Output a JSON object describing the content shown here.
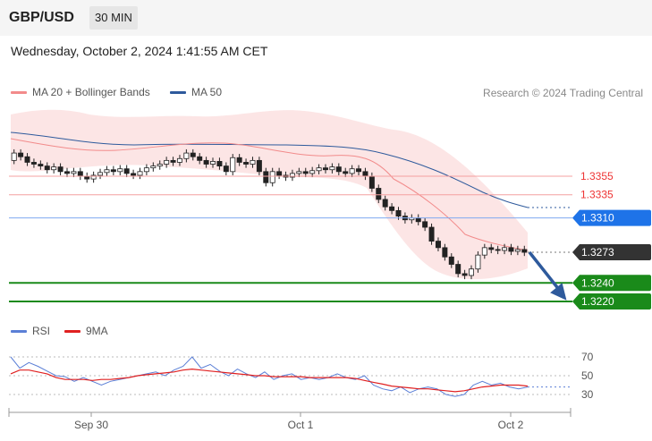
{
  "header": {
    "pair": "GBP/USD",
    "timeframe": "30 MIN",
    "datetime": "Wednesday, October 2, 2024 1:41:55 AM CET"
  },
  "legend": {
    "ma20": {
      "label": "MA 20 + Bollinger Bands",
      "color": "#f28b8b"
    },
    "ma50": {
      "label": "MA 50",
      "color": "#2e5a9c"
    },
    "credit": "Research © 2024 Trading Central"
  },
  "rsi_legend": {
    "rsi": {
      "label": "RSI",
      "color": "#5b7fd6"
    },
    "ma9": {
      "label": "9MA",
      "color": "#e02020"
    }
  },
  "chart_data": [
    {
      "type": "candlestick",
      "title": "GBP/USD",
      "timeframe": "30 MIN",
      "x_ticks": [
        "Sep 30",
        "Oct 1",
        "Oct 2"
      ],
      "candles": [
        1.338,
        1.3376,
        1.337,
        1.3368,
        1.3366,
        1.3362,
        1.3365,
        1.336,
        1.3358,
        1.336,
        1.3355,
        1.3352,
        1.3356,
        1.3359,
        1.3362,
        1.336,
        1.3363,
        1.3358,
        1.3356,
        1.336,
        1.3364,
        1.3366,
        1.3368,
        1.3372,
        1.337,
        1.3374,
        1.338,
        1.3376,
        1.3372,
        1.3368,
        1.3371,
        1.3366,
        1.336,
        1.3375,
        1.337,
        1.3368,
        1.3372,
        1.336,
        1.3348,
        1.336,
        1.3356,
        1.3354,
        1.3358,
        1.336,
        1.3358,
        1.3361,
        1.3364,
        1.3362,
        1.3365,
        1.336,
        1.3358,
        1.3363,
        1.336,
        1.3355,
        1.3342,
        1.333,
        1.3322,
        1.3318,
        1.3312,
        1.3308,
        1.331,
        1.3306,
        1.33,
        1.3285,
        1.3278,
        1.3268,
        1.326,
        1.325,
        1.3248,
        1.3255,
        1.327,
        1.3278,
        1.3276,
        1.3275,
        1.3278,
        1.3274,
        1.3276,
        1.3273
      ],
      "levels": [
        {
          "value": "1.3355",
          "color": "#ee3333",
          "kind": "resistance"
        },
        {
          "value": "1.3335",
          "color": "#ee3333",
          "kind": "resistance"
        },
        {
          "value": "1.3310",
          "color": "#1e73e8",
          "kind": "pivot"
        },
        {
          "value": "1.3273",
          "color": "#333333",
          "kind": "last"
        },
        {
          "value": "1.3240",
          "color": "#1a8a1a",
          "kind": "support"
        },
        {
          "value": "1.3220",
          "color": "#1a8a1a",
          "kind": "support"
        }
      ],
      "series": [
        {
          "name": "MA 20 + Bollinger Bands"
        },
        {
          "name": "MA 50"
        }
      ]
    },
    {
      "type": "line",
      "title": "",
      "y_ticks": [
        "70",
        "50",
        "30"
      ],
      "series": [
        {
          "name": "RSI",
          "values": [
            70,
            58,
            64,
            60,
            55,
            50,
            49,
            44,
            48,
            44,
            40,
            44,
            46,
            48,
            50,
            52,
            54,
            50,
            56,
            60,
            70,
            58,
            62,
            55,
            50,
            57,
            52,
            48,
            54,
            46,
            50,
            52,
            46,
            48,
            46,
            48,
            52,
            48,
            46,
            50,
            40,
            36,
            34,
            38,
            32,
            36,
            38,
            36,
            30,
            28,
            30,
            40,
            44,
            40,
            42,
            38,
            36,
            38
          ]
        },
        {
          "name": "9MA",
          "values": [
            52,
            56,
            56,
            54,
            52,
            48,
            46,
            46,
            46,
            45,
            46,
            46,
            47,
            48,
            50,
            51,
            52,
            53,
            54,
            56,
            57,
            56,
            55,
            54,
            53,
            52,
            51,
            50,
            50,
            49,
            49,
            49,
            49,
            48,
            48,
            48,
            48,
            48,
            47,
            45,
            43,
            41,
            39,
            38,
            37,
            36,
            36,
            35,
            34,
            33,
            34,
            36,
            38,
            39,
            40,
            40,
            40,
            39
          ]
        }
      ]
    }
  ]
}
